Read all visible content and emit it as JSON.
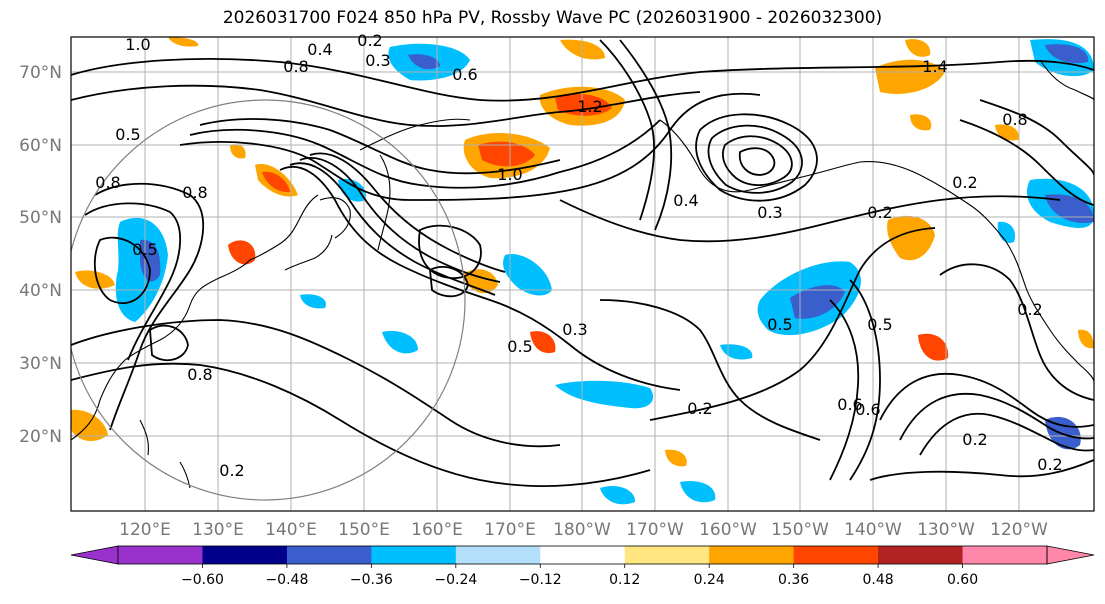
{
  "title": "2026031700 F024 850 hPa PV, Rossby Wave PC (2026031900 - 2026032300)",
  "map": {
    "lat_labels": [
      "70°N",
      "60°N",
      "50°N",
      "40°N",
      "30°N",
      "20°N"
    ],
    "lon_labels": [
      "120°E",
      "130°E",
      "140°E",
      "150°E",
      "160°E",
      "170°E",
      "180°W",
      "170°W",
      "160°W",
      "150°W",
      "140°W",
      "130°W",
      "120°W"
    ],
    "contour_labels": [
      "1.0",
      "0.4",
      "0.2",
      "0.3",
      "0.6",
      "0.8",
      "0.5",
      "1.2",
      "1.4",
      "0.5",
      "1.0",
      "0.8",
      "0.4",
      "0.3",
      "0.8",
      "0.5",
      "0.2",
      "0.6",
      "0.8",
      "0.3",
      "0.2",
      "0.5",
      "0.5",
      "0.6",
      "0.2",
      "0.2",
      "0.2",
      "0.8",
      "0.2",
      "0.2"
    ]
  },
  "colorbar": {
    "ticks": [
      "−0.60",
      "−0.48",
      "−0.36",
      "−0.24",
      "−0.12",
      "0.12",
      "0.24",
      "0.36",
      "0.48",
      "0.60"
    ],
    "colors": {
      "under": "#9932cc",
      "bins": [
        "#00008b",
        "#3a5fcd",
        "#00bfff",
        "#b2dffa",
        "#ffffff",
        "#ffe680",
        "#ffa500",
        "#ff4500",
        "#b22222"
      ],
      "over": "#ff88aa"
    }
  },
  "field_colors": {
    "ocean": "#ffffff",
    "grid": "#b0b0b0",
    "contour": "#000000",
    "coast": "#000000",
    "circle": "#808080"
  }
}
